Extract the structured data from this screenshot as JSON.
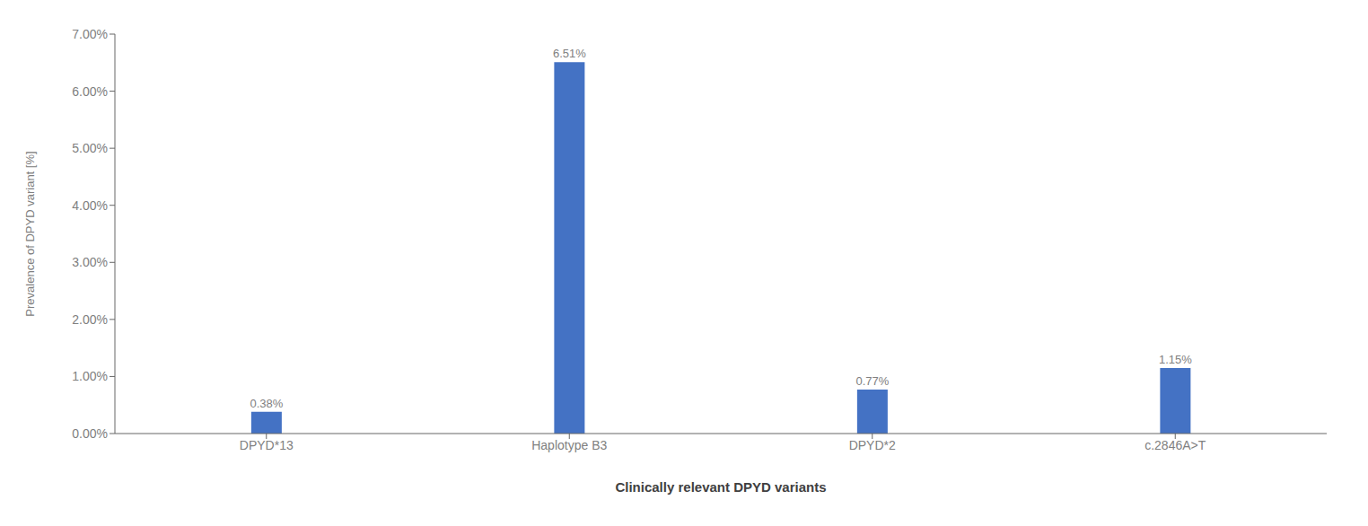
{
  "chart_data": {
    "type": "bar",
    "categories": [
      "DPYD*13",
      "Haplotype B3",
      "DPYD*2",
      "c.2846A>T"
    ],
    "values": [
      0.0038,
      0.0651,
      0.0077,
      0.0115
    ],
    "value_labels": [
      "0.38%",
      "6.51%",
      "0.77%",
      "1.15%"
    ],
    "color": "#4472C4",
    "xlabel": "Clinically relevant DPYD variants",
    "ylabel": "Prevalence of DPYD variant [%]",
    "ylim": [
      0,
      0.07
    ],
    "yticks": [
      {
        "value": 0.0,
        "label": "0.00%"
      },
      {
        "value": 0.01,
        "label": "1.00%"
      },
      {
        "value": 0.02,
        "label": "2.00%"
      },
      {
        "value": 0.03,
        "label": "3.00%"
      },
      {
        "value": 0.04,
        "label": "4.00%"
      },
      {
        "value": 0.05,
        "label": "5.00%"
      },
      {
        "value": 0.06,
        "label": "6.00%"
      },
      {
        "value": 0.07,
        "label": "7.00%"
      }
    ],
    "data_labels": true,
    "grid": false
  }
}
